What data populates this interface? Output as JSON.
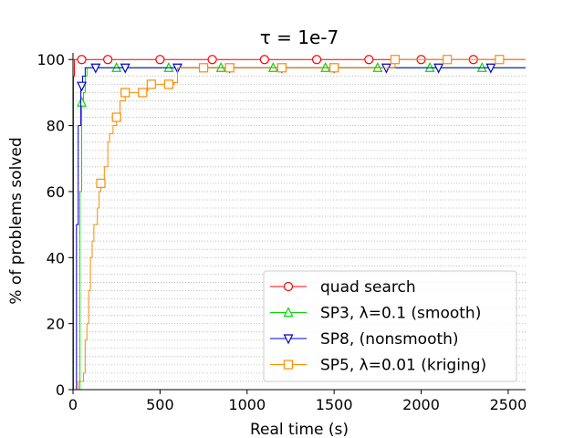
{
  "chart_data": {
    "type": "line",
    "title": "τ = 1e-7",
    "xlabel": "Real time (s)",
    "ylabel": "% of problems solved",
    "xlim": [
      0,
      2600
    ],
    "ylim": [
      0,
      102
    ],
    "xticks": [
      0,
      500,
      1000,
      1500,
      2000,
      2500
    ],
    "yticks": [
      0,
      20,
      40,
      60,
      80,
      100
    ],
    "xtick_labels": [
      "0",
      "500",
      "1000",
      "1500",
      "2000",
      "2500"
    ],
    "ytick_labels": [
      "0",
      "20",
      "40",
      "60",
      "80",
      "100"
    ],
    "grid": "horizontal dotted at 2.5% steps",
    "legend_position": "lower-right",
    "series": [
      {
        "name": "quad search",
        "color": "#ff0000",
        "marker": "circle",
        "steps": [
          [
            0,
            0
          ],
          [
            3,
            95
          ],
          [
            8,
            100
          ],
          [
            2600,
            100
          ]
        ],
        "marker_x": [
          50,
          200,
          500,
          800,
          1100,
          1400,
          1700,
          2000,
          2300
        ]
      },
      {
        "name": "SP3, λ=0.1 (smooth)",
        "color": "#00dd00",
        "marker": "triangle-up",
        "steps": [
          [
            0,
            0
          ],
          [
            30,
            0
          ],
          [
            40,
            60
          ],
          [
            50,
            87
          ],
          [
            60,
            90
          ],
          [
            70,
            95
          ],
          [
            80,
            97.5
          ],
          [
            2600,
            97.5
          ]
        ],
        "marker_x": [
          50,
          250,
          550,
          850,
          1150,
          1450,
          1750,
          2050,
          2350
        ]
      },
      {
        "name": "SP8, (nonsmooth)",
        "color": "#0000cc",
        "marker": "triangle-down",
        "steps": [
          [
            0,
            0
          ],
          [
            15,
            0
          ],
          [
            20,
            50
          ],
          [
            30,
            80
          ],
          [
            45,
            92
          ],
          [
            55,
            95
          ],
          [
            70,
            97.5
          ],
          [
            2600,
            97.5
          ]
        ],
        "marker_x": [
          50,
          130,
          300,
          600,
          900,
          1200,
          1500,
          1800,
          2100,
          2400
        ]
      },
      {
        "name": "SP5, λ=0.01 (kriging)",
        "color": "#ff8c00",
        "marker": "square",
        "steps": [
          [
            0,
            0
          ],
          [
            20,
            0
          ],
          [
            30,
            2.5
          ],
          [
            60,
            5
          ],
          [
            70,
            15
          ],
          [
            80,
            20
          ],
          [
            90,
            30
          ],
          [
            100,
            40
          ],
          [
            110,
            45
          ],
          [
            120,
            50
          ],
          [
            140,
            55
          ],
          [
            150,
            60
          ],
          [
            160,
            62.5
          ],
          [
            180,
            67.5
          ],
          [
            200,
            75
          ],
          [
            210,
            77.5
          ],
          [
            230,
            80
          ],
          [
            250,
            82.5
          ],
          [
            270,
            87.5
          ],
          [
            300,
            90
          ],
          [
            400,
            90.5
          ],
          [
            430,
            92.5
          ],
          [
            580,
            93
          ],
          [
            600,
            97.5
          ],
          [
            1800,
            97.5
          ],
          [
            1850,
            100
          ],
          [
            2600,
            100
          ]
        ],
        "marker_x": [
          160,
          250,
          300,
          400,
          450,
          550,
          750,
          900,
          1200,
          1500,
          1850,
          2150,
          2450
        ],
        "marker_y": [
          62.5,
          82.5,
          90,
          90,
          92.5,
          92.5,
          97.5,
          97.5,
          97.5,
          97.5,
          100,
          100,
          100
        ]
      }
    ]
  }
}
